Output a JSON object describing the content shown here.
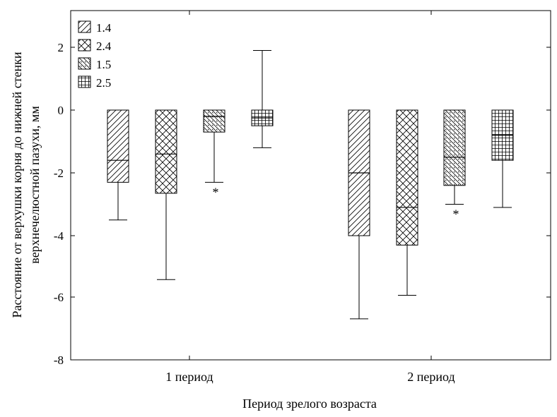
{
  "chart_data": {
    "type": "boxplot",
    "xlabel": "Период зрелого возраста",
    "ylabel_line1": "Расстояние от верхушки корня до нижней стенки",
    "ylabel_line2": "верхнечелюстной пазухи, мм",
    "ylim": [
      -8,
      3
    ],
    "yticks": [
      "2",
      "0",
      "-2",
      "-4",
      "-6",
      "-8"
    ],
    "ytick_values": [
      2,
      0,
      -2,
      -4,
      -6,
      -8
    ],
    "categories": [
      "1 период",
      "2 период"
    ],
    "legend_position": "top-left",
    "series": [
      {
        "name": "1.4",
        "pattern": "diag-right",
        "boxes": [
          {
            "top": 0,
            "bottom": -2.3,
            "median": -1.6,
            "whisker": -3.5,
            "star": false
          },
          {
            "top": 0,
            "bottom": -4.0,
            "median": -2.0,
            "whisker": -6.65,
            "star": false
          }
        ]
      },
      {
        "name": "2.4",
        "pattern": "crosshatch",
        "boxes": [
          {
            "top": 0,
            "bottom": -2.65,
            "median": -1.4,
            "whisker": -5.4,
            "star": false
          },
          {
            "top": 0,
            "bottom": -4.3,
            "median": -3.1,
            "whisker": -5.9,
            "star": false
          }
        ]
      },
      {
        "name": "1.5",
        "pattern": "diag-left",
        "boxes": [
          {
            "top": 0,
            "bottom": -0.7,
            "median": -0.2,
            "whisker": -2.3,
            "star": true
          },
          {
            "top": 0,
            "bottom": -2.4,
            "median": -1.5,
            "whisker": -3.0,
            "star": true
          }
        ]
      },
      {
        "name": "2.5",
        "pattern": "grid",
        "boxes": [
          {
            "top": 0,
            "bottom": -0.5,
            "median": -0.25,
            "whisker": -1.2,
            "whisker_up": 1.9,
            "star": false
          },
          {
            "top": 0,
            "bottom": -1.6,
            "median": -0.8,
            "whisker": -3.1,
            "star": false
          }
        ]
      }
    ],
    "annotation": "*"
  }
}
